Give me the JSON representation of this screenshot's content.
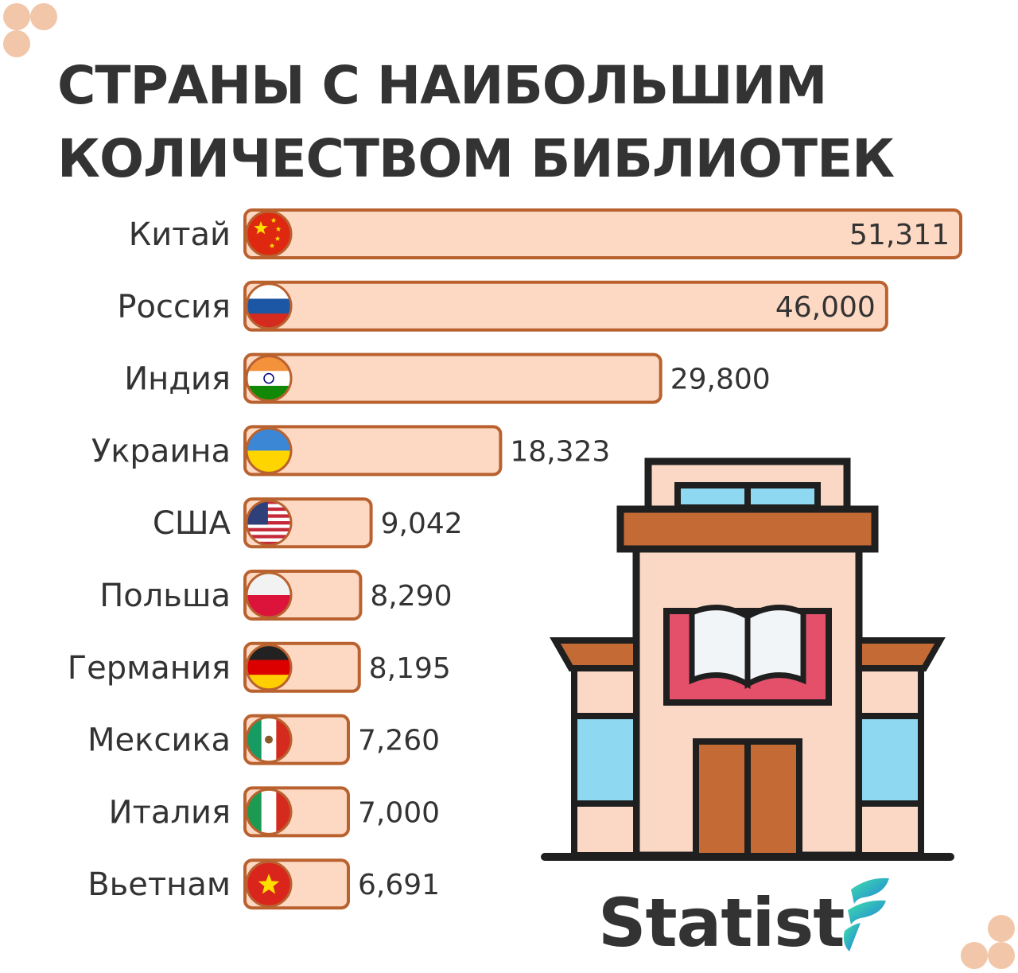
{
  "title": {
    "line1": "СТРАНЫ С НАИБОЛЬШИМ",
    "line2": "КОЛИЧЕСТВОМ БИБЛИОТЕК"
  },
  "brand": {
    "name": "Statist",
    "logo_icon": "statist-logo-icon"
  },
  "illustration": {
    "icon": "library-building-icon"
  },
  "colors": {
    "bar_fill": "#fdd9c4",
    "bar_stroke": "#b9622f",
    "text": "#333333",
    "deco_dots": "#f2c6a8"
  },
  "chart_data": {
    "type": "bar",
    "orientation": "horizontal",
    "title": "СТРАНЫ С НАИБОЛЬШИМ КОЛИЧЕСТВОМ БИБЛИОТЕК",
    "categories": [
      "Китай",
      "Россия",
      "Индия",
      "Украина",
      "США",
      "Польша",
      "Германия",
      "Мексика",
      "Италия",
      "Вьетнам"
    ],
    "values": [
      51311,
      46000,
      29800,
      18323,
      9042,
      8290,
      8195,
      7260,
      7000,
      6691
    ],
    "value_labels": [
      "51,311",
      "46,000",
      "29,800",
      "18,323",
      "9,042",
      "8,290",
      "8,195",
      "7,260",
      "7,000",
      "6,691"
    ],
    "flags": [
      "china-flag-icon",
      "russia-flag-icon",
      "india-flag-icon",
      "ukraine-flag-icon",
      "usa-flag-icon",
      "poland-flag-icon",
      "germany-flag-icon",
      "mexico-flag-icon",
      "italy-flag-icon",
      "vietnam-flag-icon"
    ],
    "xlim": [
      0,
      51311
    ],
    "grid": false,
    "legend": "none"
  }
}
